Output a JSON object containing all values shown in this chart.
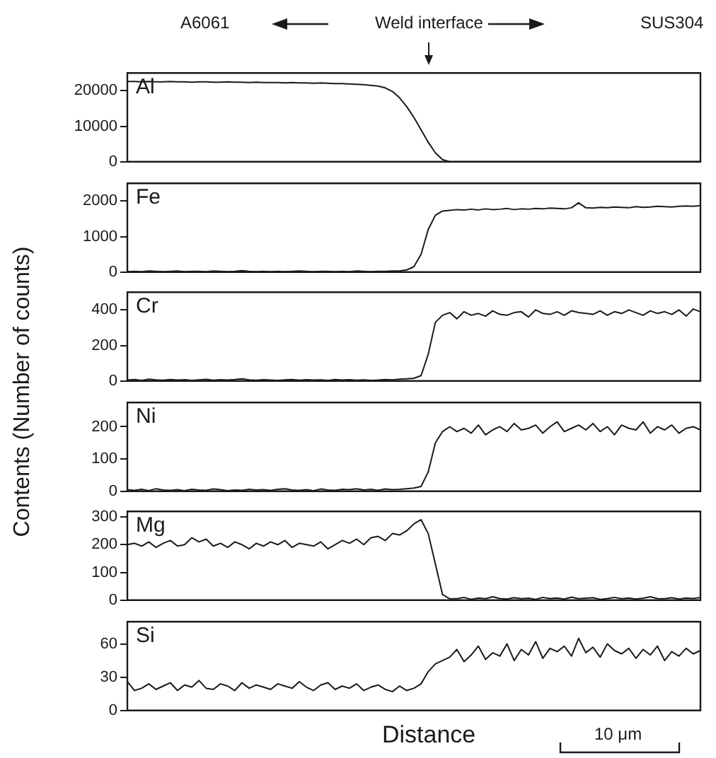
{
  "chart_data": [
    {
      "type": "line",
      "ylabel": "Contents (Number of counts)",
      "annotations": [
        "A6061",
        "Weld interface",
        "SUS304"
      ],
      "tick_labels": "y",
      "ylim": [
        0,
        25000
      ],
      "yticks": [
        0,
        10000,
        20000
      ],
      "categories": [
        null,
        null,
        null,
        null,
        null,
        null,
        null,
        null,
        null,
        null,
        null,
        null,
        null,
        null,
        null,
        null,
        null,
        null,
        null,
        null,
        null,
        null,
        null,
        null,
        null,
        null,
        null,
        null,
        null,
        null,
        null,
        null,
        null,
        null,
        null,
        null,
        null,
        null,
        null,
        null,
        null,
        null,
        null,
        null,
        null,
        null,
        null,
        null,
        null,
        null,
        null,
        null,
        null,
        null,
        null,
        null,
        null,
        null,
        null,
        null,
        null,
        null,
        null,
        null,
        null,
        null,
        null,
        null,
        null,
        null,
        null,
        null,
        null,
        null,
        null,
        null,
        null,
        null,
        null,
        null,
        null
      ],
      "series": [
        {
          "name": "Al",
          "color": "#1a1a1a",
          "values": [
            22600,
            22600,
            22500,
            22600,
            22500,
            22500,
            22600,
            22500,
            22500,
            22400,
            22500,
            22500,
            22400,
            22400,
            22500,
            22400,
            22400,
            22300,
            22400,
            22300,
            22300,
            22300,
            22200,
            22300,
            22200,
            22200,
            22100,
            22200,
            22100,
            22000,
            22000,
            21900,
            21800,
            21700,
            21500,
            21300,
            20800,
            19800,
            18000,
            15500,
            12500,
            9000,
            5500,
            2500,
            600,
            0,
            0,
            0,
            0,
            0,
            0,
            0,
            0,
            0,
            0,
            0,
            0,
            0,
            0,
            0,
            0,
            0,
            0,
            0,
            0,
            0,
            0,
            0,
            0,
            0,
            0,
            0,
            0,
            0,
            0,
            0,
            0,
            0,
            0,
            0,
            0
          ]
        }
      ]
    },
    {
      "type": "line",
      "tick_labels": "y",
      "ylim": [
        0,
        2500
      ],
      "yticks": [
        0,
        1000,
        2000
      ],
      "categories": [
        null,
        null,
        null,
        null,
        null,
        null,
        null,
        null,
        null,
        null,
        null,
        null,
        null,
        null,
        null,
        null,
        null,
        null,
        null,
        null,
        null,
        null,
        null,
        null,
        null,
        null,
        null,
        null,
        null,
        null,
        null,
        null,
        null,
        null,
        null,
        null,
        null,
        null,
        null,
        null,
        null,
        null,
        null,
        null,
        null,
        null,
        null,
        null,
        null,
        null,
        null,
        null,
        null,
        null,
        null,
        null,
        null,
        null,
        null,
        null,
        null,
        null,
        null,
        null,
        null,
        null,
        null,
        null,
        null,
        null,
        null,
        null,
        null,
        null,
        null,
        null,
        null,
        null,
        null,
        null,
        null
      ],
      "series": [
        {
          "name": "Fe",
          "color": "#1a1a1a",
          "values": [
            10,
            20,
            10,
            30,
            20,
            10,
            20,
            30,
            10,
            20,
            20,
            10,
            30,
            20,
            10,
            20,
            40,
            20,
            10,
            20,
            10,
            20,
            10,
            20,
            30,
            20,
            10,
            20,
            20,
            10,
            20,
            10,
            30,
            20,
            10,
            20,
            20,
            30,
            30,
            60,
            150,
            500,
            1200,
            1600,
            1720,
            1740,
            1760,
            1750,
            1770,
            1750,
            1780,
            1760,
            1770,
            1790,
            1760,
            1780,
            1770,
            1790,
            1780,
            1800,
            1790,
            1780,
            1810,
            1950,
            1810,
            1800,
            1820,
            1810,
            1830,
            1820,
            1810,
            1840,
            1820,
            1830,
            1850,
            1840,
            1830,
            1850,
            1860,
            1850,
            1870
          ]
        }
      ]
    },
    {
      "type": "line",
      "tick_labels": "y",
      "ylim": [
        0,
        500
      ],
      "yticks": [
        0,
        200,
        400
      ],
      "categories": [
        null,
        null,
        null,
        null,
        null,
        null,
        null,
        null,
        null,
        null,
        null,
        null,
        null,
        null,
        null,
        null,
        null,
        null,
        null,
        null,
        null,
        null,
        null,
        null,
        null,
        null,
        null,
        null,
        null,
        null,
        null,
        null,
        null,
        null,
        null,
        null,
        null,
        null,
        null,
        null,
        null,
        null,
        null,
        null,
        null,
        null,
        null,
        null,
        null,
        null,
        null,
        null,
        null,
        null,
        null,
        null,
        null,
        null,
        null,
        null,
        null,
        null,
        null,
        null,
        null,
        null,
        null,
        null,
        null,
        null,
        null,
        null,
        null,
        null,
        null,
        null,
        null,
        null,
        null,
        null,
        null
      ],
      "series": [
        {
          "name": "Cr",
          "color": "#1a1a1a",
          "values": [
            5,
            8,
            3,
            10,
            6,
            4,
            8,
            5,
            7,
            3,
            6,
            9,
            4,
            7,
            5,
            8,
            12,
            6,
            4,
            7,
            5,
            3,
            6,
            8,
            4,
            7,
            5,
            6,
            3,
            8,
            5,
            7,
            4,
            6,
            3,
            5,
            8,
            6,
            10,
            12,
            15,
            30,
            150,
            330,
            370,
            385,
            350,
            390,
            370,
            380,
            365,
            395,
            375,
            370,
            385,
            390,
            360,
            400,
            380,
            375,
            390,
            370,
            395,
            385,
            380,
            375,
            395,
            370,
            390,
            380,
            400,
            385,
            370,
            395,
            380,
            390,
            375,
            400,
            365,
            405,
            390
          ]
        }
      ]
    },
    {
      "type": "line",
      "tick_labels": "y",
      "ylim": [
        0,
        275
      ],
      "yticks": [
        0,
        100,
        200
      ],
      "categories": [
        null,
        null,
        null,
        null,
        null,
        null,
        null,
        null,
        null,
        null,
        null,
        null,
        null,
        null,
        null,
        null,
        null,
        null,
        null,
        null,
        null,
        null,
        null,
        null,
        null,
        null,
        null,
        null,
        null,
        null,
        null,
        null,
        null,
        null,
        null,
        null,
        null,
        null,
        null,
        null,
        null,
        null,
        null,
        null,
        null,
        null,
        null,
        null,
        null,
        null,
        null,
        null,
        null,
        null,
        null,
        null,
        null,
        null,
        null,
        null,
        null,
        null,
        null,
        null,
        null,
        null,
        null,
        null,
        null,
        null,
        null,
        null,
        null,
        null,
        null,
        null,
        null,
        null,
        null,
        null,
        null
      ],
      "series": [
        {
          "name": "Ni",
          "color": "#1a1a1a",
          "values": [
            5,
            3,
            6,
            2,
            8,
            4,
            3,
            5,
            2,
            6,
            4,
            3,
            7,
            5,
            2,
            4,
            3,
            6,
            4,
            5,
            3,
            6,
            8,
            4,
            3,
            5,
            2,
            7,
            4,
            3,
            6,
            5,
            8,
            4,
            6,
            3,
            7,
            5,
            6,
            8,
            10,
            15,
            60,
            150,
            185,
            200,
            185,
            195,
            180,
            205,
            175,
            190,
            200,
            185,
            210,
            190,
            195,
            205,
            180,
            200,
            215,
            185,
            195,
            205,
            190,
            210,
            185,
            200,
            175,
            205,
            195,
            190,
            215,
            180,
            200,
            190,
            205,
            180,
            195,
            200,
            190
          ]
        }
      ]
    },
    {
      "type": "line",
      "tick_labels": "y",
      "ylim": [
        0,
        320
      ],
      "yticks": [
        0,
        100,
        200,
        300
      ],
      "categories": [
        null,
        null,
        null,
        null,
        null,
        null,
        null,
        null,
        null,
        null,
        null,
        null,
        null,
        null,
        null,
        null,
        null,
        null,
        null,
        null,
        null,
        null,
        null,
        null,
        null,
        null,
        null,
        null,
        null,
        null,
        null,
        null,
        null,
        null,
        null,
        null,
        null,
        null,
        null,
        null,
        null,
        null,
        null,
        null,
        null,
        null,
        null,
        null,
        null,
        null,
        null,
        null,
        null,
        null,
        null,
        null,
        null,
        null,
        null,
        null,
        null,
        null,
        null,
        null,
        null,
        null,
        null,
        null,
        null,
        null,
        null,
        null,
        null,
        null,
        null,
        null,
        null,
        null,
        null,
        null,
        null
      ],
      "series": [
        {
          "name": "Mg",
          "color": "#1a1a1a",
          "values": [
            200,
            205,
            195,
            210,
            190,
            205,
            215,
            195,
            200,
            225,
            210,
            220,
            195,
            205,
            190,
            210,
            200,
            185,
            205,
            195,
            210,
            200,
            215,
            190,
            205,
            200,
            195,
            210,
            185,
            200,
            215,
            205,
            220,
            200,
            225,
            230,
            215,
            240,
            235,
            250,
            275,
            290,
            240,
            130,
            20,
            5,
            5,
            10,
            3,
            8,
            5,
            12,
            6,
            4,
            9,
            5,
            7,
            3,
            10,
            6,
            8,
            4,
            11,
            5,
            7,
            9,
            3,
            6,
            10,
            5,
            8,
            4,
            7,
            12,
            6,
            5,
            9,
            4,
            8,
            6,
            10
          ]
        }
      ]
    },
    {
      "type": "line",
      "xlabel": "Distance",
      "annotations": [
        "10 μm"
      ],
      "tick_labels": "y",
      "ylim": [
        0,
        80
      ],
      "yticks": [
        0,
        30,
        60
      ],
      "categories": [
        null,
        null,
        null,
        null,
        null,
        null,
        null,
        null,
        null,
        null,
        null,
        null,
        null,
        null,
        null,
        null,
        null,
        null,
        null,
        null,
        null,
        null,
        null,
        null,
        null,
        null,
        null,
        null,
        null,
        null,
        null,
        null,
        null,
        null,
        null,
        null,
        null,
        null,
        null,
        null,
        null,
        null,
        null,
        null,
        null,
        null,
        null,
        null,
        null,
        null,
        null,
        null,
        null,
        null,
        null,
        null,
        null,
        null,
        null,
        null,
        null,
        null,
        null,
        null,
        null,
        null,
        null,
        null,
        null,
        null,
        null,
        null,
        null,
        null,
        null,
        null,
        null,
        null,
        null,
        null,
        null
      ],
      "series": [
        {
          "name": "Si",
          "color": "#1a1a1a",
          "values": [
            26,
            18,
            20,
            24,
            19,
            22,
            25,
            18,
            23,
            21,
            27,
            20,
            19,
            24,
            22,
            18,
            25,
            20,
            23,
            21,
            19,
            24,
            22,
            20,
            26,
            21,
            18,
            23,
            25,
            19,
            22,
            20,
            24,
            18,
            21,
            23,
            19,
            17,
            22,
            18,
            20,
            24,
            35,
            42,
            45,
            48,
            55,
            44,
            50,
            58,
            46,
            52,
            49,
            60,
            45,
            55,
            50,
            62,
            47,
            56,
            53,
            58,
            49,
            65,
            52,
            57,
            48,
            60,
            54,
            51,
            56,
            47,
            55,
            50,
            58,
            45,
            53,
            49,
            56,
            51,
            54
          ]
        }
      ]
    }
  ]
}
